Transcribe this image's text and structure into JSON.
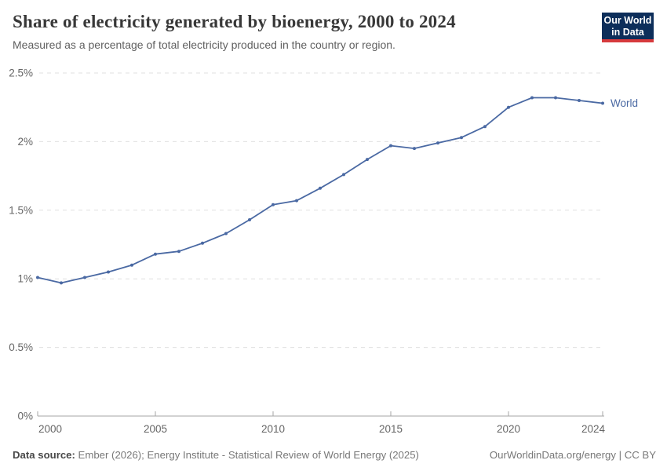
{
  "header": {
    "title": "Share of electricity generated by bioenergy, 2000 to 2024",
    "subtitle": "Measured as a percentage of total electricity produced in the country or region.",
    "logo": {
      "line1": "Our World",
      "line2": "in Data",
      "bg_color": "#0d2e5a",
      "accent_color": "#d73a3d"
    }
  },
  "chart_data": {
    "type": "line",
    "title": "Share of electricity generated by bioenergy, 2000 to 2024",
    "xlabel": "",
    "ylabel": "",
    "x": [
      2000,
      2001,
      2002,
      2003,
      2004,
      2005,
      2006,
      2007,
      2008,
      2009,
      2010,
      2011,
      2012,
      2013,
      2014,
      2015,
      2016,
      2017,
      2018,
      2019,
      2020,
      2021,
      2022,
      2023,
      2024
    ],
    "series": [
      {
        "name": "World",
        "color": "#4a69a3",
        "values": [
          1.01,
          0.97,
          1.01,
          1.05,
          1.1,
          1.18,
          1.2,
          1.26,
          1.33,
          1.43,
          1.54,
          1.57,
          1.66,
          1.76,
          1.87,
          1.97,
          1.95,
          1.99,
          2.03,
          2.11,
          2.25,
          2.32,
          2.32,
          2.3,
          2.28
        ]
      }
    ],
    "ylim": [
      0,
      2.5
    ],
    "yticks": {
      "values": [
        0,
        0.5,
        1,
        1.5,
        2,
        2.5
      ],
      "labels": [
        "0%",
        "0.5%",
        "1%",
        "1.5%",
        "2%",
        "2.5%"
      ]
    },
    "xticks": {
      "values": [
        2000,
        2005,
        2010,
        2015,
        2020,
        2024
      ],
      "labels": [
        "2000",
        "2005",
        "2010",
        "2015",
        "2020",
        "2024"
      ]
    },
    "grid": "horizontal-dashed",
    "legend_position": "line-end-label"
  },
  "colors": {
    "gridline": "#e0e0e0",
    "axis": "#a5a5a5",
    "tick_text": "#666666"
  },
  "footer": {
    "source_label": "Data source:",
    "source_text": " Ember (2026); Energy Institute - Statistical Review of World Energy (2025)",
    "link_text": "OurWorldinData.org/energy | CC BY"
  }
}
